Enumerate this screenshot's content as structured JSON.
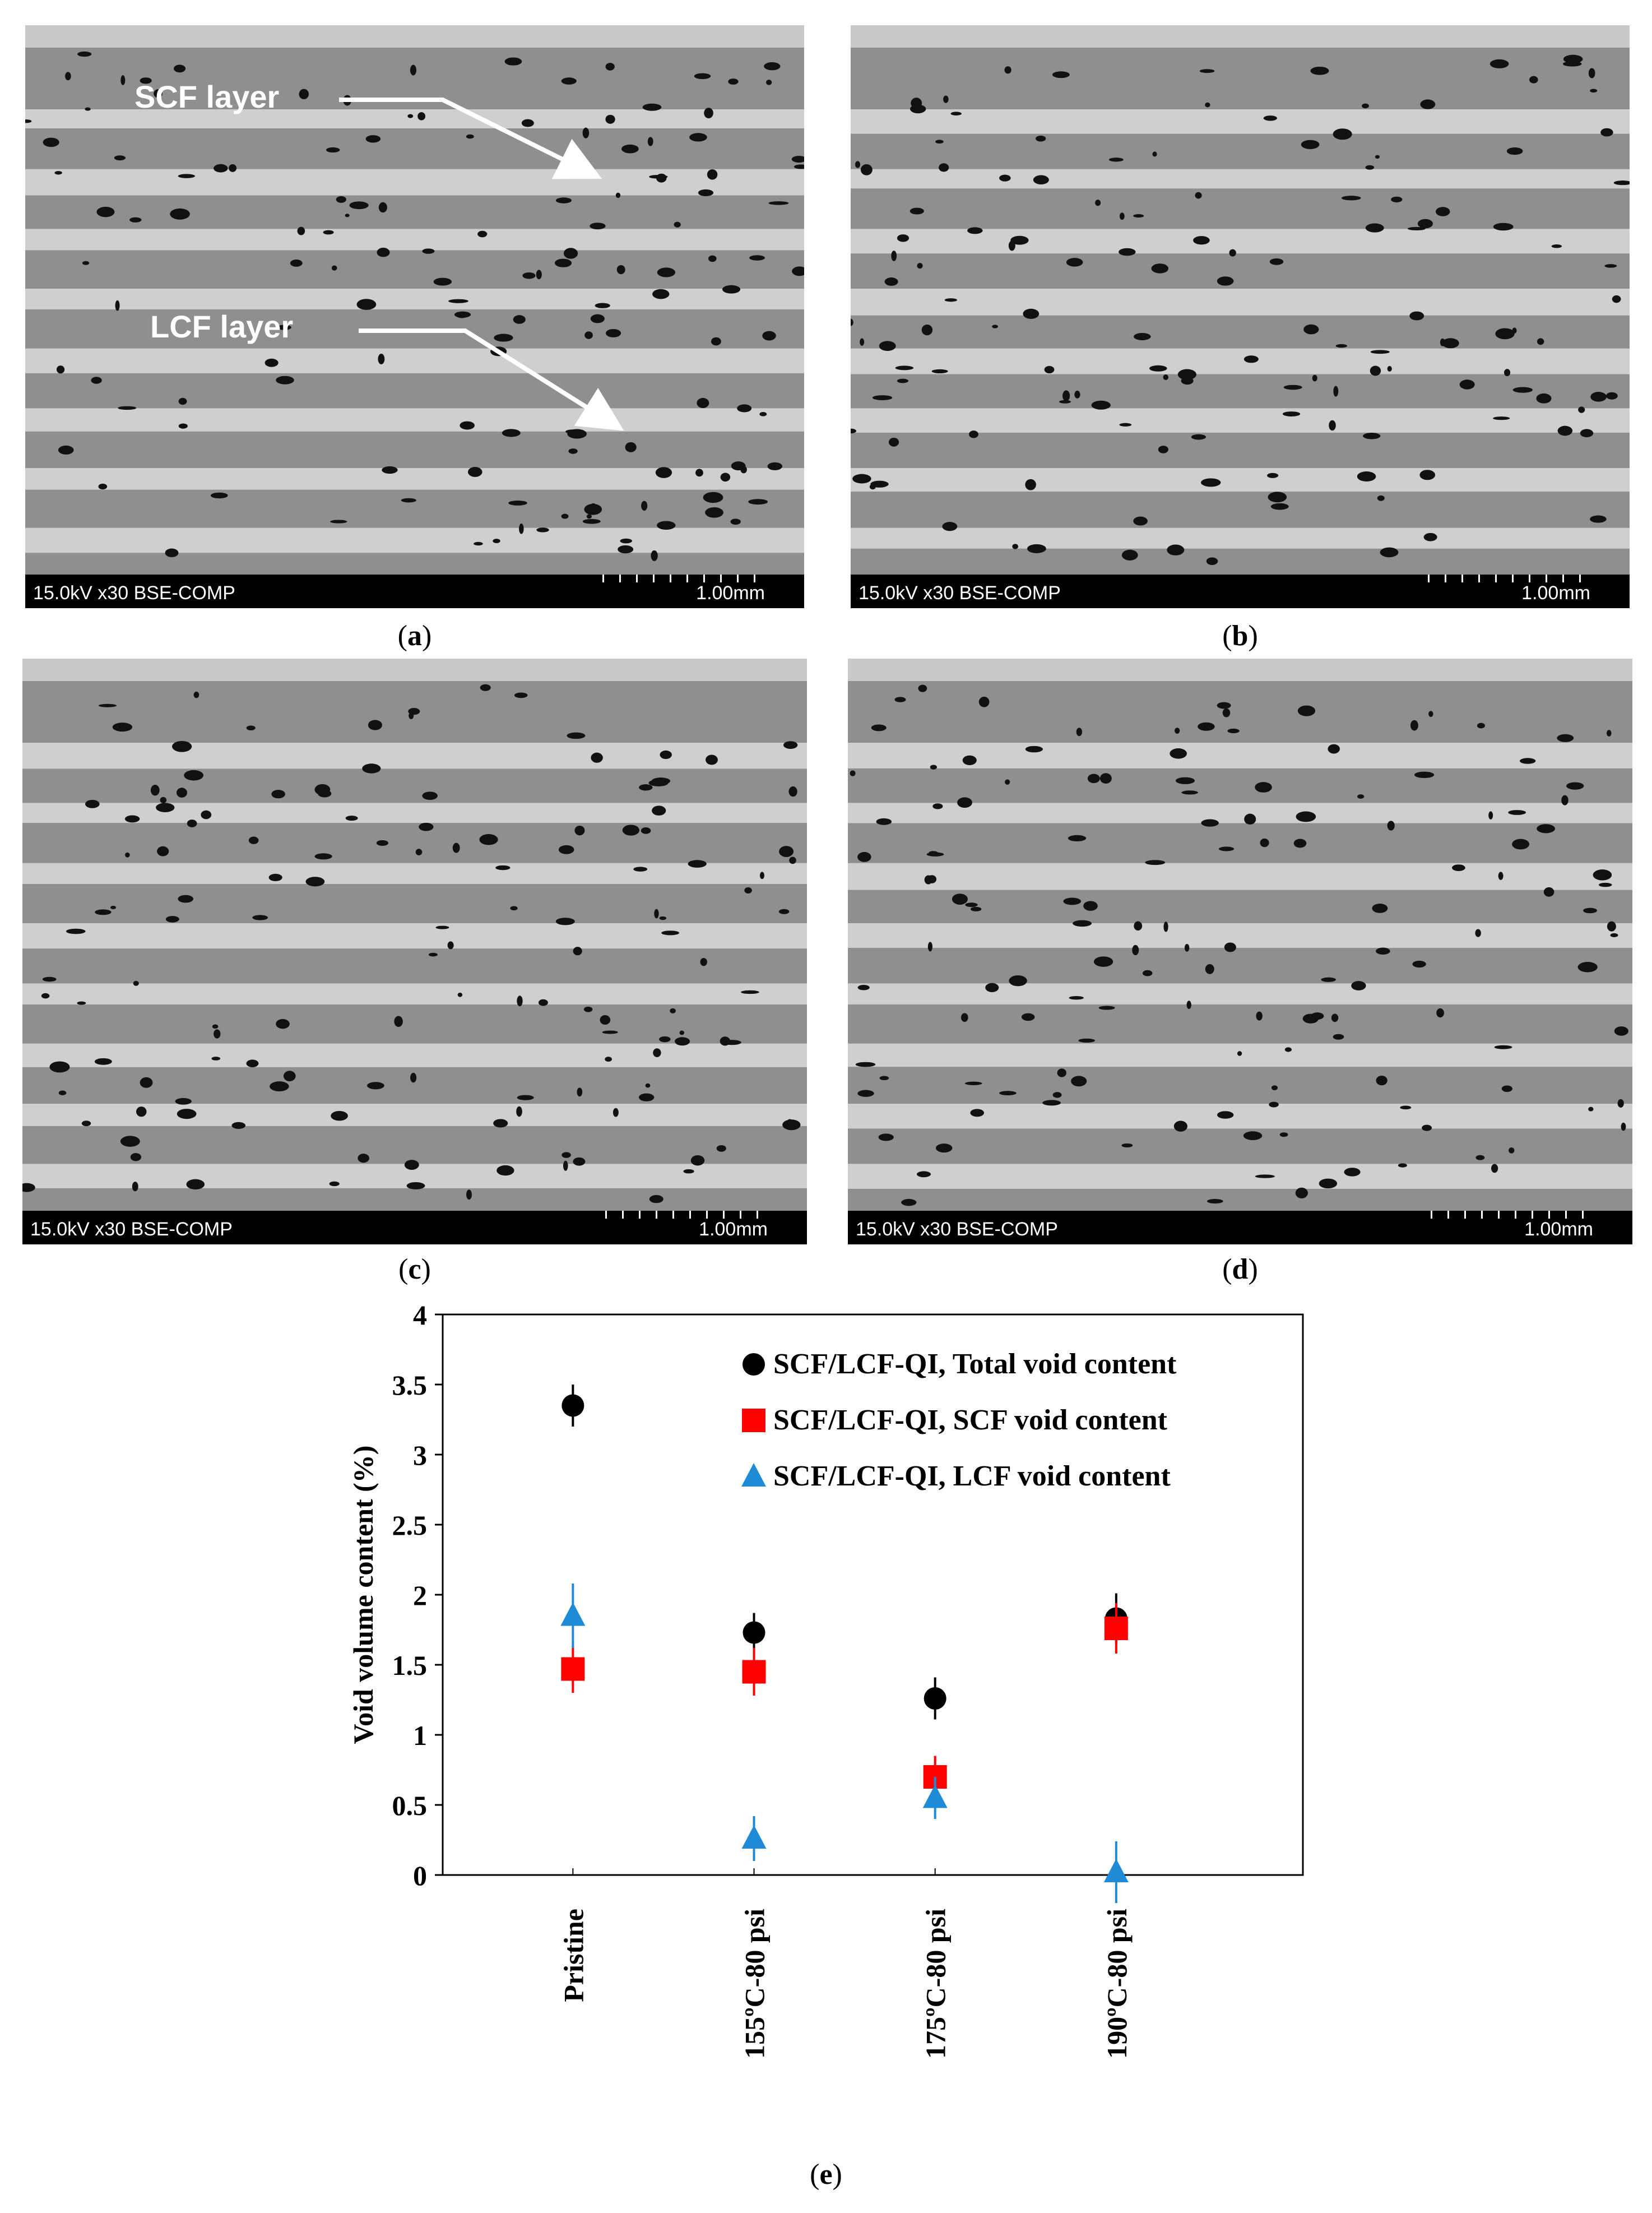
{
  "panels": [
    {
      "id": "a",
      "caption_letter": "a",
      "info_left": "15.0kV x30 BSE-COMP",
      "scale_text": "1.00mm"
    },
    {
      "id": "b",
      "caption_letter": "b",
      "info_left": "15.0kV x30 BSE-COMP",
      "scale_text": "1.00mm"
    },
    {
      "id": "c",
      "caption_letter": "c",
      "info_left": "15.0kV x30 BSE-COMP",
      "scale_text": "1.00mm"
    },
    {
      "id": "d",
      "caption_letter": "d",
      "info_left": "15.0kV x30 BSE-COMP",
      "scale_text": "1.00mm"
    }
  ],
  "annotations": {
    "scf_label": "SCF layer",
    "lcf_label": "LCF layer"
  },
  "colors": {
    "total": "#000000",
    "scf": "#ff0000",
    "lcf": "#1f8ad6",
    "micro_matrix": "#8f8f8f",
    "micro_layer": "#cfcfcf"
  },
  "chart_caption": "e",
  "chart_data": {
    "type": "scatter",
    "categories": [
      "Pristine",
      "155ºC-80 psi",
      "175ºC-80 psi",
      "190ºC-80 psi"
    ],
    "ylabel": "Void volume content (%)",
    "xlabel": "",
    "ylim": [
      0,
      4
    ],
    "yticks": [
      "0",
      "0.5",
      "1",
      "1.5",
      "2",
      "2.5",
      "3",
      "3.5",
      "4"
    ],
    "legend_position": "top-right",
    "grid": false,
    "series": [
      {
        "name": "SCF/LCF-QI, Total void content",
        "marker": "circle",
        "color": "#000000",
        "values": [
          3.35,
          1.73,
          1.26,
          1.83
        ],
        "errors": [
          0.15,
          0.14,
          0.15,
          0.18
        ]
      },
      {
        "name": "SCF/LCF-QI, SCF void content",
        "marker": "square",
        "color": "#ff0000",
        "values": [
          1.47,
          1.45,
          0.7,
          1.76
        ],
        "errors": [
          0.17,
          0.17,
          0.15,
          0.18
        ]
      },
      {
        "name": "SCF/LCF-QI, LCF void content",
        "marker": "triangle",
        "color": "#1f8ad6",
        "values": [
          1.85,
          0.26,
          0.55,
          0.02
        ],
        "errors": [
          0.23,
          0.16,
          0.15,
          0.22
        ]
      }
    ]
  }
}
